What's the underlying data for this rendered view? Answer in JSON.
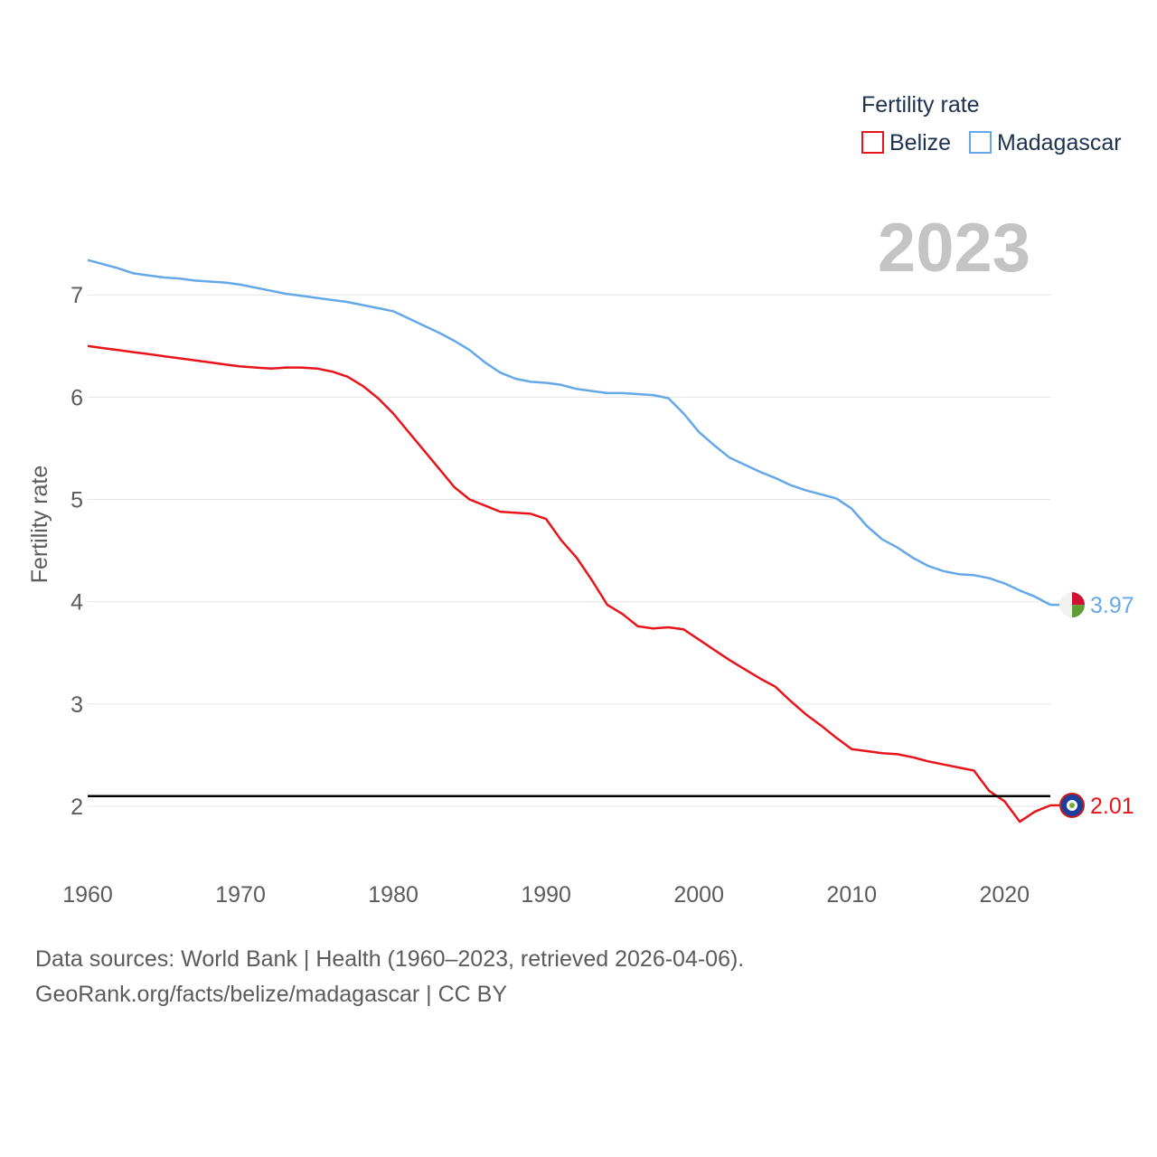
{
  "chart_data": {
    "type": "line",
    "title": "",
    "ylabel": "Fertility rate",
    "xlabel": "",
    "year_label": "2023",
    "legend": {
      "title": "Fertility rate",
      "position": "top-right"
    },
    "x_ticks": [
      1960,
      1970,
      1980,
      1990,
      2000,
      2010,
      2020
    ],
    "y_ticks": [
      2,
      3,
      4,
      5,
      6,
      7
    ],
    "xlim": [
      1960,
      2023
    ],
    "ylim": [
      1.4,
      7.85
    ],
    "reference_line": 2.1,
    "x": [
      1960,
      1961,
      1962,
      1963,
      1964,
      1965,
      1966,
      1967,
      1968,
      1969,
      1970,
      1971,
      1972,
      1973,
      1974,
      1975,
      1976,
      1977,
      1978,
      1979,
      1980,
      1981,
      1982,
      1983,
      1984,
      1985,
      1986,
      1987,
      1988,
      1989,
      1990,
      1991,
      1992,
      1993,
      1994,
      1995,
      1996,
      1997,
      1998,
      1999,
      2000,
      2001,
      2002,
      2003,
      2004,
      2005,
      2006,
      2007,
      2008,
      2009,
      2010,
      2011,
      2012,
      2013,
      2014,
      2015,
      2016,
      2017,
      2018,
      2019,
      2020,
      2021,
      2022,
      2023
    ],
    "series": [
      {
        "name": "Belize",
        "color": "#e8141a",
        "end_label": "2.01",
        "values": [
          6.5,
          6.48,
          6.46,
          6.44,
          6.42,
          6.4,
          6.38,
          6.36,
          6.34,
          6.32,
          6.3,
          6.29,
          6.28,
          6.29,
          6.29,
          6.28,
          6.25,
          6.2,
          6.11,
          5.99,
          5.84,
          5.66,
          5.48,
          5.3,
          5.12,
          5.0,
          4.94,
          4.88,
          4.87,
          4.86,
          4.81,
          4.6,
          4.43,
          4.21,
          3.97,
          3.88,
          3.76,
          3.74,
          3.75,
          3.73,
          3.63,
          3.53,
          3.43,
          3.34,
          3.25,
          3.17,
          3.03,
          2.9,
          2.79,
          2.67,
          2.56,
          2.54,
          2.52,
          2.51,
          2.48,
          2.44,
          2.41,
          2.38,
          2.35,
          2.15,
          2.05,
          1.85,
          1.95,
          2.01
        ]
      },
      {
        "name": "Madagascar",
        "color": "#64a8e8",
        "end_label": "3.97",
        "values": [
          7.34,
          7.3,
          7.26,
          7.21,
          7.19,
          7.17,
          7.16,
          7.14,
          7.13,
          7.12,
          7.1,
          7.07,
          7.04,
          7.01,
          6.99,
          6.97,
          6.95,
          6.93,
          6.9,
          6.87,
          6.84,
          6.77,
          6.7,
          6.63,
          6.55,
          6.46,
          6.34,
          6.24,
          6.18,
          6.15,
          6.14,
          6.12,
          6.08,
          6.06,
          6.04,
          6.04,
          6.03,
          6.02,
          5.99,
          5.84,
          5.66,
          5.53,
          5.41,
          5.34,
          5.27,
          5.21,
          5.14,
          5.09,
          5.05,
          5.01,
          4.91,
          4.74,
          4.61,
          4.53,
          4.43,
          4.35,
          4.3,
          4.27,
          4.26,
          4.23,
          4.18,
          4.11,
          4.05,
          3.97
        ]
      }
    ]
  },
  "footer": {
    "line1": "Data sources: World Bank | Health (1960–2023, retrieved 2026-04-06).",
    "line2": "GeoRank.org/facts/belize/madagascar | CC BY"
  }
}
